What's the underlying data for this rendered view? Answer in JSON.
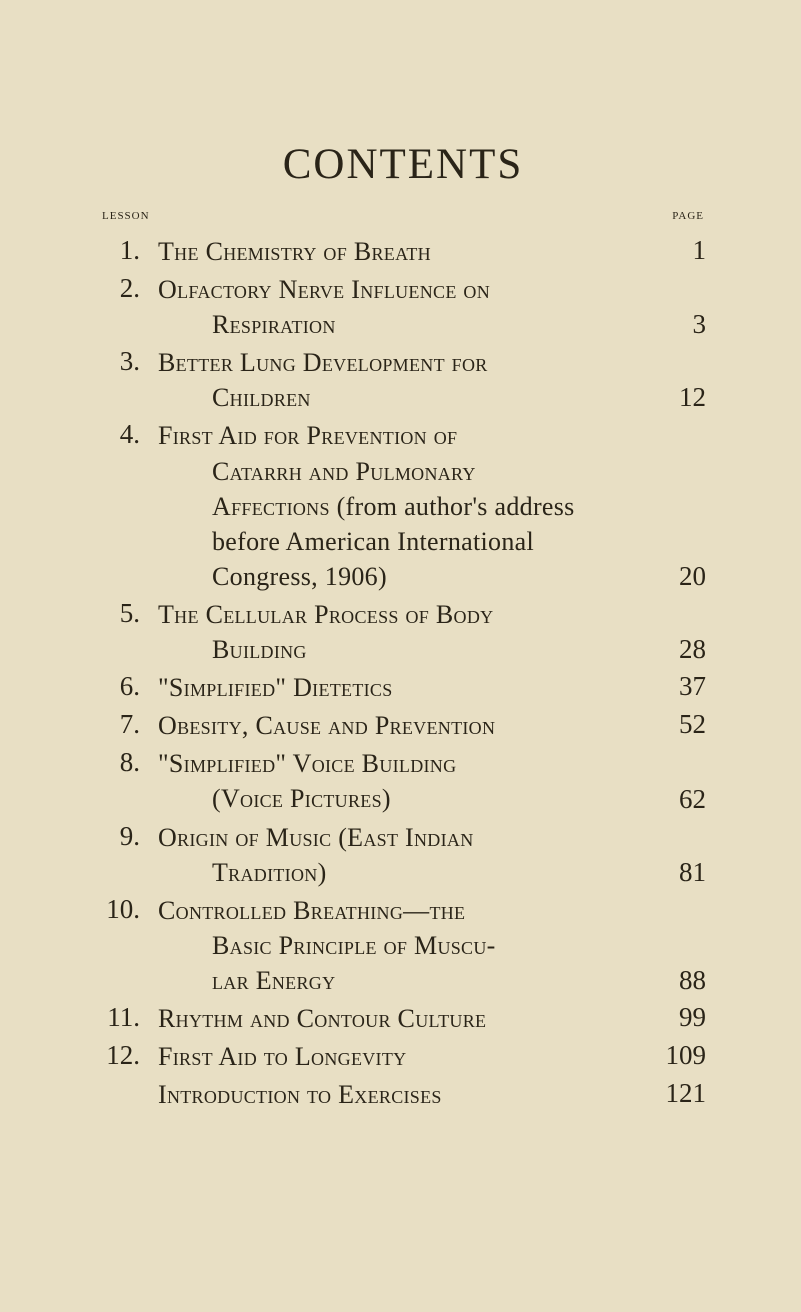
{
  "title": "CONTENTS",
  "header": {
    "left": "lesson",
    "right": "page"
  },
  "entries": [
    {
      "num": "1.",
      "page": "1",
      "lines": [
        "The Chemistry of Breath"
      ]
    },
    {
      "num": "2.",
      "page": "3",
      "lines": [
        "Olfactory Nerve Influence on",
        "Respiration"
      ]
    },
    {
      "num": "3.",
      "page": "12",
      "lines": [
        "Better Lung Development for",
        "Children"
      ]
    },
    {
      "num": "4.",
      "page": "20",
      "lines": [
        "First Aid for Prevention of",
        "Catarrh and Pulmonary",
        "Affections"
      ],
      "plainTail": " (from author's address before American International Congress, 1906)"
    },
    {
      "num": "5.",
      "page": "28",
      "lines": [
        "The Cellular Process of Body",
        "Building"
      ]
    },
    {
      "num": "6.",
      "page": "37",
      "lines": [
        "\"Simplified\" Dietetics"
      ]
    },
    {
      "num": "7.",
      "page": "52",
      "lines": [
        "Obesity, Cause and Prevention"
      ]
    },
    {
      "num": "8.",
      "page": "62",
      "lines": [
        "\"Simplified\" Voice Building",
        "(Voice Pictures)"
      ]
    },
    {
      "num": "9.",
      "page": "81",
      "lines": [
        "Origin of Music (East Indian",
        "Tradition)"
      ]
    },
    {
      "num": "10.",
      "page": "88",
      "lines": [
        "Controlled Breathing—the",
        "Basic Principle of Muscu-",
        "lar Energy"
      ]
    },
    {
      "num": "11.",
      "page": "99",
      "lines": [
        "Rhythm and Contour Culture"
      ]
    },
    {
      "num": "12.",
      "page": "109",
      "lines": [
        "First Aid to Longevity"
      ]
    },
    {
      "num": "",
      "page": "121",
      "lines": [
        "Introduction to Exercises"
      ]
    }
  ]
}
